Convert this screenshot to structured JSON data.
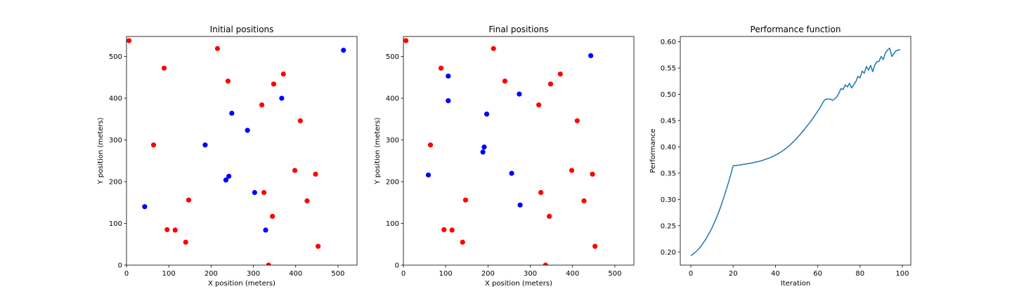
{
  "chart_data": [
    {
      "type": "scatter",
      "title": "Initial positions",
      "xlabel": "X position (meters)",
      "ylabel": "Y position (meters)",
      "xlim": [
        0,
        545
      ],
      "ylim": [
        0,
        548
      ],
      "xticks": [
        0,
        100,
        200,
        300,
        400,
        500
      ],
      "yticks": [
        0,
        100,
        200,
        300,
        400,
        500
      ],
      "grid": false,
      "colors": {
        "red": "#ff0000",
        "blue": "#0000ff"
      },
      "series": [
        {
          "color": "red",
          "points": [
            [
              6,
              538
            ],
            [
              215,
              519
            ],
            [
              89,
              472
            ],
            [
              371,
              458
            ],
            [
              240,
              441
            ],
            [
              348,
              434
            ],
            [
              320,
              384
            ],
            [
              411,
              346
            ],
            [
              64,
              288
            ],
            [
              398,
              227
            ],
            [
              447,
              218
            ],
            [
              325,
              174
            ],
            [
              147,
              156
            ],
            [
              427,
              154
            ],
            [
              345,
              117
            ],
            [
              96,
              85
            ],
            [
              115,
              84
            ],
            [
              140,
              55
            ],
            [
              453,
              45
            ],
            [
              336,
              0
            ]
          ]
        },
        {
          "color": "blue",
          "points": [
            [
              513,
              515
            ],
            [
              367,
              400
            ],
            [
              249,
              364
            ],
            [
              286,
              323
            ],
            [
              186,
              288
            ],
            [
              242,
              213
            ],
            [
              235,
              204
            ],
            [
              303,
              174
            ],
            [
              43,
              140
            ],
            [
              329,
              84
            ]
          ]
        }
      ]
    },
    {
      "type": "scatter",
      "title": "Final positions",
      "xlabel": "X position (meters)",
      "ylabel": "Y position (meters)",
      "xlim": [
        0,
        545
      ],
      "ylim": [
        0,
        548
      ],
      "xticks": [
        0,
        100,
        200,
        300,
        400,
        500
      ],
      "yticks": [
        0,
        100,
        200,
        300,
        400,
        500
      ],
      "grid": false,
      "colors": {
        "red": "#ff0000",
        "blue": "#0000ff"
      },
      "series": [
        {
          "color": "red",
          "points": [
            [
              6,
              538
            ],
            [
              213,
              519
            ],
            [
              89,
              472
            ],
            [
              371,
              458
            ],
            [
              240,
              441
            ],
            [
              348,
              434
            ],
            [
              320,
              384
            ],
            [
              411,
              346
            ],
            [
              64,
              288
            ],
            [
              398,
              227
            ],
            [
              447,
              218
            ],
            [
              325,
              174
            ],
            [
              147,
              156
            ],
            [
              427,
              154
            ],
            [
              345,
              117
            ],
            [
              96,
              85
            ],
            [
              115,
              84
            ],
            [
              140,
              55
            ],
            [
              453,
              45
            ],
            [
              336,
              0
            ]
          ]
        },
        {
          "color": "blue",
          "points": [
            [
              443,
              502
            ],
            [
              106,
              453
            ],
            [
              106,
              394
            ],
            [
              274,
              410
            ],
            [
              197,
              362
            ],
            [
              191,
              283
            ],
            [
              188,
              271
            ],
            [
              59,
              216
            ],
            [
              256,
              220
            ],
            [
              276,
              144
            ]
          ]
        }
      ]
    },
    {
      "type": "line",
      "title": "Performance function",
      "xlabel": "Iteration",
      "ylabel": "Performance",
      "xlim": [
        -5,
        104
      ],
      "ylim": [
        0.175,
        0.61
      ],
      "xticks": [
        0,
        20,
        40,
        60,
        80,
        100
      ],
      "yticks": [
        0.2,
        0.25,
        0.3,
        0.35,
        0.4,
        0.45,
        0.5,
        0.55,
        0.6
      ],
      "ytick_decimals": 2,
      "grid": false,
      "line_color": "#1f77b4",
      "x": [
        0,
        1,
        2,
        3,
        4,
        5,
        6,
        7,
        8,
        9,
        10,
        11,
        12,
        13,
        14,
        15,
        16,
        17,
        18,
        19,
        20,
        21,
        22,
        23,
        24,
        25,
        26,
        27,
        28,
        29,
        30,
        31,
        32,
        33,
        34,
        35,
        36,
        37,
        38,
        39,
        40,
        41,
        42,
        43,
        44,
        45,
        46,
        47,
        48,
        49,
        50,
        51,
        52,
        53,
        54,
        55,
        56,
        57,
        58,
        59,
        60,
        61,
        62,
        63,
        64,
        65,
        66,
        67,
        68,
        69,
        70,
        71,
        72,
        73,
        74,
        75,
        76,
        77,
        78,
        79,
        80,
        81,
        82,
        83,
        84,
        85,
        86,
        87,
        88,
        89,
        90,
        91,
        92,
        93,
        94,
        95,
        96,
        97,
        98,
        99
      ],
      "y": [
        0.193,
        0.196,
        0.199,
        0.203,
        0.207,
        0.212,
        0.218,
        0.224,
        0.231,
        0.238,
        0.246,
        0.255,
        0.264,
        0.274,
        0.285,
        0.297,
        0.309,
        0.322,
        0.335,
        0.349,
        0.364,
        0.3645,
        0.365,
        0.3655,
        0.366,
        0.3668,
        0.3673,
        0.368,
        0.3687,
        0.3695,
        0.3703,
        0.3712,
        0.3722,
        0.3733,
        0.3745,
        0.3758,
        0.3772,
        0.3787,
        0.3804,
        0.3822,
        0.3842,
        0.3864,
        0.3888,
        0.3914,
        0.3942,
        0.3972,
        0.4005,
        0.404,
        0.4078,
        0.4118,
        0.416,
        0.4205,
        0.425,
        0.43,
        0.435,
        0.44,
        0.445,
        0.45,
        0.456,
        0.462,
        0.468,
        0.474,
        0.481,
        0.488,
        0.491,
        0.4905,
        0.491,
        0.4885,
        0.4915,
        0.495,
        0.502,
        0.511,
        0.509,
        0.518,
        0.514,
        0.521,
        0.512,
        0.518,
        0.524,
        0.534,
        0.531,
        0.544,
        0.54,
        0.553,
        0.546,
        0.555,
        0.543,
        0.556,
        0.562,
        0.563,
        0.572,
        0.566,
        0.579,
        0.584,
        0.588,
        0.572,
        0.577,
        0.583,
        0.584,
        0.585
      ]
    }
  ]
}
